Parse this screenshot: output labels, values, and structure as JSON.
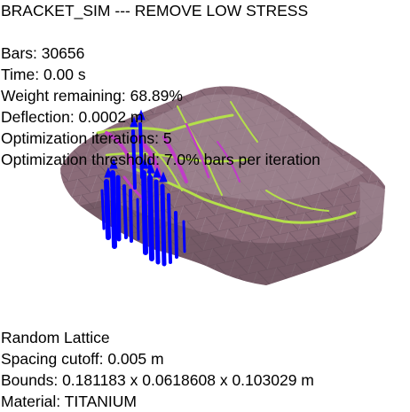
{
  "window": {
    "title": "BRACKET_SIM --- REMOVE LOW STRESS"
  },
  "stats": {
    "bars": "Bars: 30656",
    "time": "Time: 0.00 s",
    "weight": "Weight remaining: 68.89%",
    "deflection": "Deflection: 0.0002 m",
    "iterations": "Optimization iterations: 5",
    "threshold": "Optimization threshold: 7.0% bars per iteration"
  },
  "info": {
    "lattice": "Random Lattice",
    "spacing": "Spacing cutoff: 0.005 m",
    "bounds": "Bounds: 0.181183 x 0.0618608 x 0.103029 m",
    "material": "Material: TITANIUM"
  },
  "colors": {
    "background": "#ffffff",
    "mesh": "#8a6b78",
    "mesh_light": "#a8909a",
    "mesh_dark": "#5c4650",
    "stress_high": "#b4e04a",
    "stress_mid": "#c03cc8",
    "load_vectors": "#0000ff"
  }
}
